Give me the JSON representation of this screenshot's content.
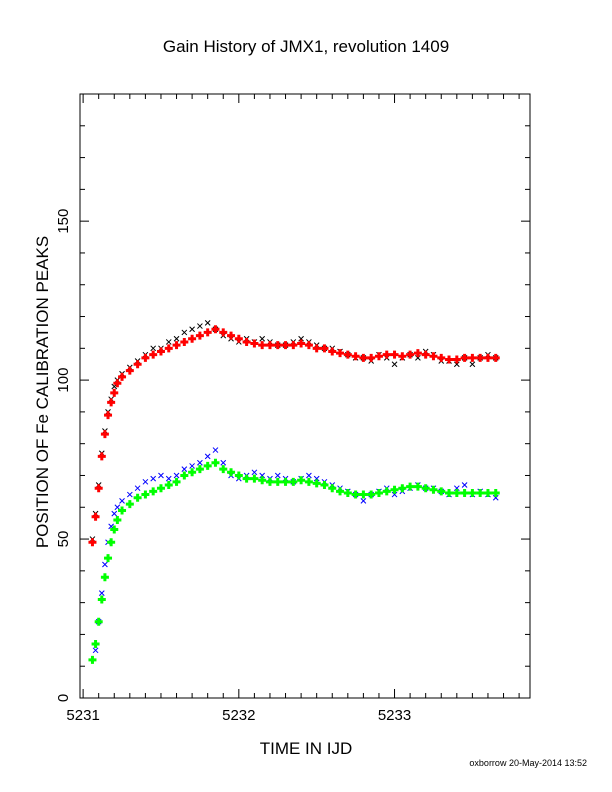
{
  "chart_data": {
    "type": "scatter",
    "title": "Gain History of JMX1, revolution 1409",
    "xlabel": "TIME IN IJD",
    "ylabel": "POSITION OF Fe CALIBRATION PEAKS",
    "xlim": [
      5230.98,
      5233.87
    ],
    "ylim": [
      0,
      190
    ],
    "xticks": [
      5231,
      5232,
      5233
    ],
    "yticks": [
      0,
      50,
      100,
      150
    ],
    "grid": false,
    "series": [
      {
        "marker": "x",
        "color": "#000000",
        "x": [
          5231.06,
          5231.08,
          5231.1,
          5231.12,
          5231.14,
          5231.16,
          5231.18,
          5231.2,
          5231.22,
          5231.25,
          5231.3,
          5231.35,
          5231.4,
          5231.45,
          5231.5,
          5231.55,
          5231.6,
          5231.65,
          5231.7,
          5231.75,
          5231.8,
          5231.85,
          5231.9,
          5231.95,
          5232.0,
          5232.05,
          5232.1,
          5232.15,
          5232.2,
          5232.25,
          5232.3,
          5232.35,
          5232.4,
          5232.45,
          5232.5,
          5232.55,
          5232.6,
          5232.65,
          5232.7,
          5232.75,
          5232.8,
          5232.85,
          5232.9,
          5232.95,
          5233.0,
          5233.05,
          5233.1,
          5233.15,
          5233.2,
          5233.25,
          5233.3,
          5233.35,
          5233.4,
          5233.45,
          5233.5,
          5233.55,
          5233.6,
          5233.65
        ],
        "y": [
          50,
          58,
          67,
          77,
          84,
          90,
          94,
          98,
          100,
          102,
          104,
          106,
          108,
          110,
          110,
          112,
          113,
          115,
          116,
          117,
          118,
          116,
          114,
          113,
          112,
          113,
          112,
          113,
          112,
          111,
          111,
          112,
          113,
          112,
          111,
          110,
          110,
          109,
          108,
          107,
          107,
          106,
          108,
          107,
          105,
          107,
          108,
          107,
          109,
          108,
          106,
          106,
          105,
          107,
          105,
          107,
          108,
          107
        ]
      },
      {
        "marker": "+",
        "color": "#ff0000",
        "x": [
          5231.06,
          5231.08,
          5231.1,
          5231.12,
          5231.14,
          5231.16,
          5231.18,
          5231.2,
          5231.22,
          5231.25,
          5231.3,
          5231.35,
          5231.4,
          5231.45,
          5231.5,
          5231.55,
          5231.6,
          5231.65,
          5231.7,
          5231.75,
          5231.8,
          5231.85,
          5231.9,
          5231.95,
          5232.0,
          5232.05,
          5232.1,
          5232.15,
          5232.2,
          5232.25,
          5232.3,
          5232.35,
          5232.4,
          5232.45,
          5232.5,
          5232.55,
          5232.6,
          5232.65,
          5232.7,
          5232.75,
          5232.8,
          5232.85,
          5232.9,
          5232.95,
          5233.0,
          5233.05,
          5233.1,
          5233.15,
          5233.2,
          5233.25,
          5233.3,
          5233.35,
          5233.4,
          5233.45,
          5233.5,
          5233.55,
          5233.6,
          5233.65
        ],
        "y": [
          49,
          57,
          66,
          76,
          83,
          89,
          93,
          96,
          99,
          101,
          103,
          105,
          107,
          108,
          109,
          110,
          111,
          112,
          113,
          114,
          115,
          116,
          115,
          114,
          113,
          112,
          111.5,
          111,
          111,
          111,
          111,
          111,
          111.5,
          111,
          110,
          110,
          109,
          108.5,
          108,
          107.5,
          107,
          107,
          107.5,
          108,
          108,
          107.5,
          108,
          108.5,
          108,
          107.5,
          107,
          106.5,
          106.5,
          107,
          107,
          107,
          107,
          107
        ]
      },
      {
        "marker": "x",
        "color": "#0000ff",
        "x": [
          5231.08,
          5231.1,
          5231.12,
          5231.14,
          5231.16,
          5231.18,
          5231.2,
          5231.22,
          5231.25,
          5231.3,
          5231.35,
          5231.4,
          5231.45,
          5231.5,
          5231.55,
          5231.6,
          5231.65,
          5231.7,
          5231.75,
          5231.8,
          5231.85,
          5231.9,
          5231.95,
          5232.0,
          5232.05,
          5232.1,
          5232.15,
          5232.2,
          5232.25,
          5232.3,
          5232.35,
          5232.4,
          5232.45,
          5232.5,
          5232.55,
          5232.6,
          5232.65,
          5232.7,
          5232.75,
          5232.8,
          5232.85,
          5232.9,
          5232.95,
          5233.0,
          5233.05,
          5233.1,
          5233.15,
          5233.2,
          5233.25,
          5233.3,
          5233.35,
          5233.4,
          5233.45,
          5233.5,
          5233.55,
          5233.6,
          5233.65
        ],
        "y": [
          15,
          24,
          33,
          42,
          49,
          54,
          58,
          60,
          62,
          64,
          66,
          68,
          69,
          70,
          69,
          70,
          72,
          73,
          74,
          76,
          78,
          74,
          70,
          69,
          70,
          71,
          70,
          69,
          70,
          69,
          68,
          69,
          70,
          69,
          68,
          67,
          66,
          65,
          64,
          62,
          64,
          65,
          66,
          64,
          65,
          66,
          67,
          66,
          66,
          65,
          64,
          66,
          67,
          64,
          65,
          64,
          63
        ]
      },
      {
        "marker": "+",
        "color": "#00ff00",
        "x": [
          5231.06,
          5231.08,
          5231.1,
          5231.12,
          5231.14,
          5231.16,
          5231.18,
          5231.2,
          5231.22,
          5231.25,
          5231.3,
          5231.35,
          5231.4,
          5231.45,
          5231.5,
          5231.55,
          5231.6,
          5231.65,
          5231.7,
          5231.75,
          5231.8,
          5231.85,
          5231.9,
          5231.95,
          5232.0,
          5232.05,
          5232.1,
          5232.15,
          5232.2,
          5232.25,
          5232.3,
          5232.35,
          5232.4,
          5232.45,
          5232.5,
          5232.55,
          5232.6,
          5232.65,
          5232.7,
          5232.75,
          5232.8,
          5232.85,
          5232.9,
          5232.95,
          5233.0,
          5233.05,
          5233.1,
          5233.15,
          5233.2,
          5233.25,
          5233.3,
          5233.35,
          5233.4,
          5233.45,
          5233.5,
          5233.55,
          5233.6,
          5233.65
        ],
        "y": [
          12,
          17,
          24,
          31,
          38,
          44,
          49,
          53,
          56,
          59,
          61,
          63,
          64,
          65,
          66,
          67,
          68,
          70,
          71,
          72,
          73,
          74,
          72,
          71,
          70,
          69,
          69,
          68.5,
          68,
          68,
          68,
          68,
          68.5,
          68,
          67.5,
          67,
          66,
          65,
          64.5,
          64,
          64,
          64,
          64.5,
          65,
          65.5,
          66,
          66.5,
          66.5,
          66,
          65.5,
          65,
          64.5,
          64.5,
          64.5,
          64.5,
          64.5,
          64.5,
          64.5
        ]
      }
    ]
  },
  "footer": {
    "credit": "oxborrow 20-May-2014 13:52"
  }
}
